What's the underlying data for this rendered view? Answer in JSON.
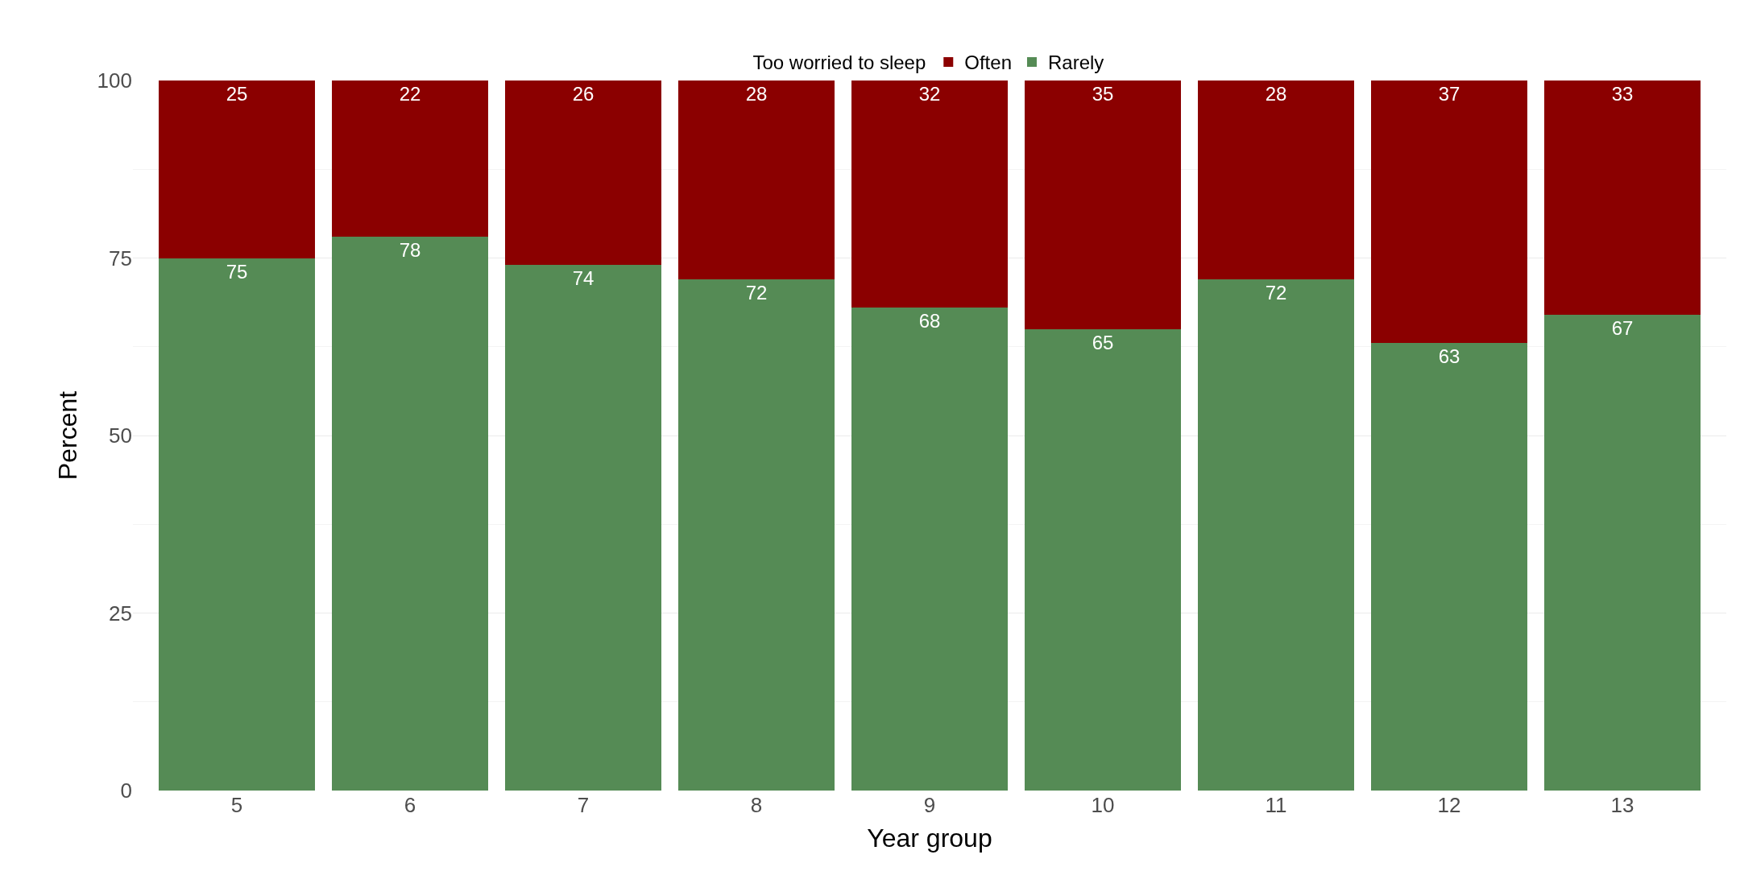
{
  "chart_data": {
    "type": "bar",
    "stacked": true,
    "xlabel": "Year group",
    "ylabel": "Percent",
    "legend_title": "Too worried to sleep",
    "categories": [
      "5",
      "6",
      "7",
      "8",
      "9",
      "10",
      "11",
      "12",
      "13"
    ],
    "series": [
      {
        "name": "Rarely",
        "color": "#558b55",
        "values": [
          75,
          78,
          74,
          72,
          68,
          65,
          72,
          63,
          67
        ]
      },
      {
        "name": "Often",
        "color": "#8b0000",
        "values": [
          25,
          22,
          26,
          28,
          32,
          35,
          28,
          37,
          33
        ]
      }
    ],
    "ylim": [
      0,
      100
    ],
    "yticks": [
      0,
      25,
      50,
      75,
      100
    ],
    "grid": true,
    "legend": "top",
    "data_labels": true
  }
}
